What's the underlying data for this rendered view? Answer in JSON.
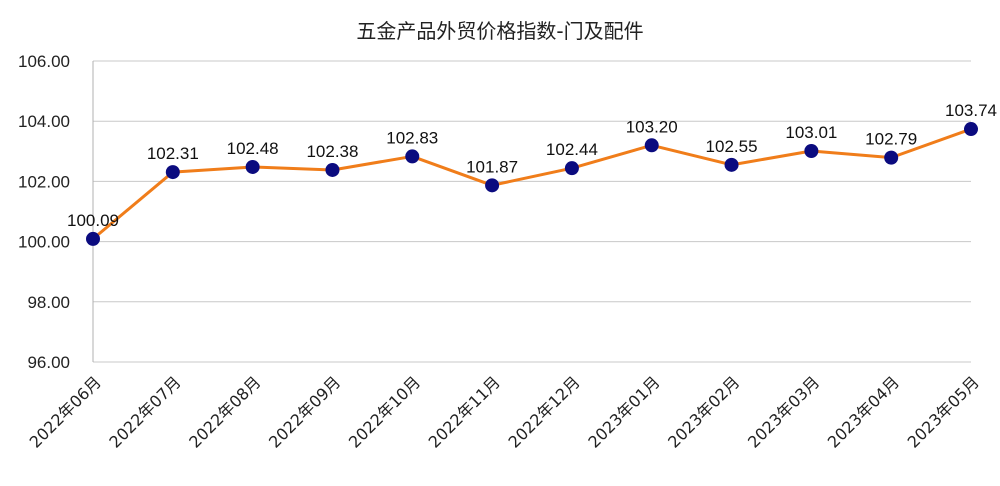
{
  "chart_data": {
    "type": "line",
    "title": "五金产品外贸价格指数-门及配件",
    "xlabel": "",
    "ylabel": "",
    "categories": [
      "2022年06月",
      "2022年07月",
      "2022年08月",
      "2022年09月",
      "2022年10月",
      "2022年11月",
      "2022年12月",
      "2023年01月",
      "2023年02月",
      "2023年03月",
      "2023年04月",
      "2023年05月"
    ],
    "series": [
      {
        "values": [
          100.09,
          102.31,
          102.48,
          102.38,
          102.83,
          101.87,
          102.44,
          103.2,
          102.55,
          103.01,
          102.79,
          103.74
        ],
        "labels": [
          "100.09",
          "102.31",
          "102.48",
          "102.38",
          "102.83",
          "101.87",
          "102.44",
          "103.20",
          "102.55",
          "103.01",
          "102.79",
          "103.74"
        ]
      }
    ],
    "ylim": [
      96,
      106
    ],
    "yticks": [
      "96.00",
      "98.00",
      "100.00",
      "102.00",
      "104.00",
      "106.00"
    ],
    "grid": true,
    "legend": "none",
    "colors": {
      "line": "#F07D1A",
      "marker": "#0B0B7F",
      "grid": "#c8c8c8"
    }
  }
}
